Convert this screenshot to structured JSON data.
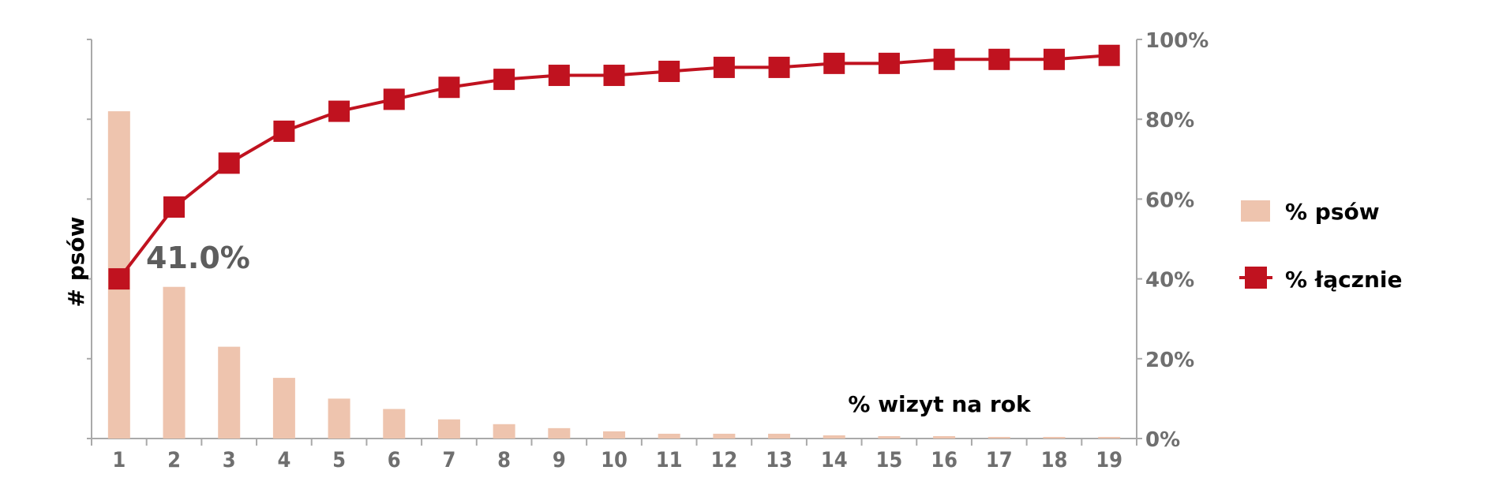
{
  "chart_data": {
    "type": "bar+line",
    "categories": [
      "1",
      "2",
      "3",
      "4",
      "5",
      "6",
      "7",
      "8",
      "9",
      "10",
      "11",
      "12",
      "13",
      "14",
      "15",
      "16",
      "17",
      "18",
      "19"
    ],
    "series": [
      {
        "name": "% psów",
        "type": "bar",
        "axis": "left",
        "color": "#eec4ae",
        "values": [
          41.0,
          19.0,
          11.5,
          7.6,
          5.0,
          3.7,
          2.4,
          1.8,
          1.3,
          0.9,
          0.6,
          0.6,
          0.6,
          0.4,
          0.3,
          0.3,
          0.2,
          0.2,
          0.2
        ]
      },
      {
        "name": "% łącznie",
        "type": "line",
        "axis": "right",
        "color": "#c0121f",
        "marker": "square",
        "values": [
          40,
          58,
          69,
          77,
          82,
          85,
          88,
          90,
          91,
          91,
          92,
          93,
          93,
          94,
          94,
          95,
          95,
          95,
          96
        ]
      }
    ],
    "ylabel": "# psów",
    "xlabel": "% wizyt na rok",
    "y2_ticks": [
      "0%",
      "20%",
      "40%",
      "60%",
      "80%",
      "100%"
    ],
    "y2lim": [
      0,
      100
    ],
    "ylim": [
      0,
      50
    ],
    "annotation": "41.0%",
    "legend_position": "right",
    "grid": false
  }
}
